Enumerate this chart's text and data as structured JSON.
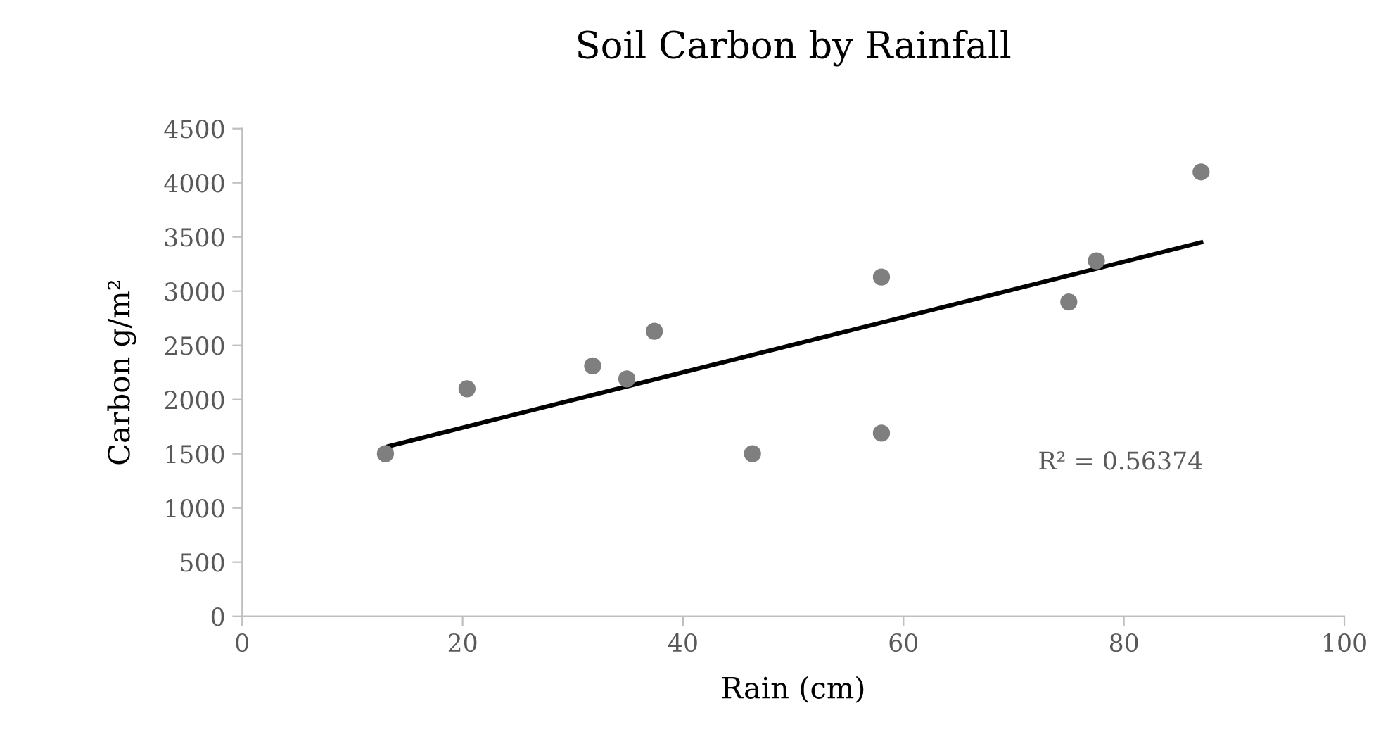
{
  "chart_data": {
    "type": "scatter",
    "title": "Soil Carbon by Rainfall",
    "xlabel": "Rain (cm)",
    "ylabel": "Carbon g/m²",
    "xlim": [
      0,
      100
    ],
    "xticks": [
      0,
      20,
      40,
      60,
      80,
      100
    ],
    "ylim": [
      0,
      4500
    ],
    "yticks": [
      0,
      500,
      1000,
      1500,
      2000,
      2500,
      3000,
      3500,
      4000,
      4500
    ],
    "grid": false,
    "legend": false,
    "series": [
      {
        "marker": "circle",
        "color": "#7f7f7f",
        "x": [
          13.0,
          20.4,
          31.8,
          34.9,
          37.4,
          46.3,
          58.0,
          58.0,
          75.0,
          77.5,
          87.0
        ],
        "values": [
          1500,
          2100,
          2310,
          2190,
          2630,
          1500,
          3130,
          1690,
          2900,
          3280,
          4100
        ]
      },
      {
        "type": "line",
        "color": "#000000",
        "line_style": "solid",
        "x": [
          13.3,
          87.0
        ],
        "values": [
          1570,
          3450
        ]
      }
    ],
    "annotations": [
      "R² = 0.56374"
    ]
  }
}
